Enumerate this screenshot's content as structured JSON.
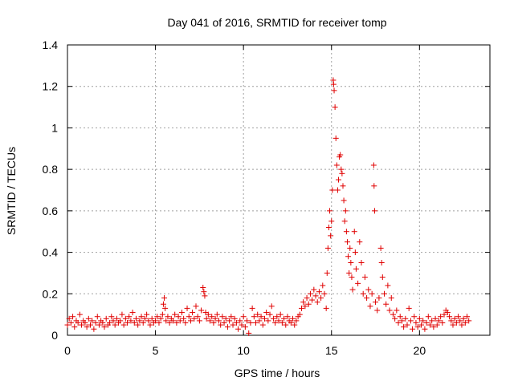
{
  "chart_data": {
    "type": "scatter",
    "title": "Day 041 of 2016, SRMTID for receiver tomp",
    "xlabel": "GPS time / hours",
    "ylabel": "SRMTID / TECUs",
    "xlim": [
      0,
      24
    ],
    "ylim": [
      0,
      1.4
    ],
    "xticks": [
      0,
      5,
      10,
      15,
      20
    ],
    "yticks": [
      0,
      0.2,
      0.4,
      0.6,
      0.8,
      1,
      1.2,
      1.4
    ],
    "xtick_labels": [
      "0",
      "5",
      "10",
      "15",
      "20"
    ],
    "ytick_labels": [
      "0",
      "0.2",
      "0.4",
      "0.6",
      "0.8",
      "1",
      "1.2",
      "1.4"
    ],
    "grid": true,
    "marker": "+",
    "color": "#e00000",
    "series": [
      {
        "name": "SRMTID",
        "points": [
          [
            0.0,
            0.05
          ],
          [
            0.1,
            0.08
          ],
          [
            0.2,
            0.06
          ],
          [
            0.3,
            0.09
          ],
          [
            0.4,
            0.04
          ],
          [
            0.5,
            0.07
          ],
          [
            0.6,
            0.06
          ],
          [
            0.7,
            0.1
          ],
          [
            0.8,
            0.05
          ],
          [
            0.9,
            0.07
          ],
          [
            1.0,
            0.06
          ],
          [
            1.1,
            0.04
          ],
          [
            1.2,
            0.08
          ],
          [
            1.3,
            0.05
          ],
          [
            1.4,
            0.07
          ],
          [
            1.5,
            0.03
          ],
          [
            1.6,
            0.06
          ],
          [
            1.7,
            0.09
          ],
          [
            1.8,
            0.05
          ],
          [
            1.9,
            0.07
          ],
          [
            2.0,
            0.06
          ],
          [
            2.1,
            0.04
          ],
          [
            2.2,
            0.08
          ],
          [
            2.3,
            0.05
          ],
          [
            2.4,
            0.06
          ],
          [
            2.5,
            0.09
          ],
          [
            2.6,
            0.07
          ],
          [
            2.7,
            0.05
          ],
          [
            2.8,
            0.08
          ],
          [
            2.9,
            0.06
          ],
          [
            3.0,
            0.07
          ],
          [
            3.1,
            0.1
          ],
          [
            3.2,
            0.05
          ],
          [
            3.3,
            0.08
          ],
          [
            3.4,
            0.06
          ],
          [
            3.5,
            0.09
          ],
          [
            3.6,
            0.07
          ],
          [
            3.7,
            0.11
          ],
          [
            3.8,
            0.06
          ],
          [
            3.9,
            0.08
          ],
          [
            4.0,
            0.05
          ],
          [
            4.1,
            0.07
          ],
          [
            4.2,
            0.09
          ],
          [
            4.3,
            0.06
          ],
          [
            4.4,
            0.08
          ],
          [
            4.5,
            0.1
          ],
          [
            4.6,
            0.07
          ],
          [
            4.7,
            0.05
          ],
          [
            4.8,
            0.08
          ],
          [
            4.9,
            0.06
          ],
          [
            5.0,
            0.07
          ],
          [
            5.1,
            0.09
          ],
          [
            5.2,
            0.06
          ],
          [
            5.3,
            0.08
          ],
          [
            5.4,
            0.1
          ],
          [
            5.45,
            0.15
          ],
          [
            5.5,
            0.18
          ],
          [
            5.55,
            0.13
          ],
          [
            5.6,
            0.07
          ],
          [
            5.7,
            0.09
          ],
          [
            5.8,
            0.06
          ],
          [
            5.9,
            0.08
          ],
          [
            6.0,
            0.07
          ],
          [
            6.1,
            0.1
          ],
          [
            6.2,
            0.06
          ],
          [
            6.3,
            0.09
          ],
          [
            6.4,
            0.07
          ],
          [
            6.5,
            0.11
          ],
          [
            6.6,
            0.08
          ],
          [
            6.7,
            0.06
          ],
          [
            6.8,
            0.13
          ],
          [
            6.9,
            0.09
          ],
          [
            7.0,
            0.07
          ],
          [
            7.1,
            0.11
          ],
          [
            7.2,
            0.08
          ],
          [
            7.3,
            0.14
          ],
          [
            7.4,
            0.09
          ],
          [
            7.5,
            0.07
          ],
          [
            7.6,
            0.12
          ],
          [
            7.7,
            0.23
          ],
          [
            7.75,
            0.21
          ],
          [
            7.8,
            0.19
          ],
          [
            7.85,
            0.11
          ],
          [
            7.9,
            0.08
          ],
          [
            8.0,
            0.1
          ],
          [
            8.1,
            0.07
          ],
          [
            8.2,
            0.09
          ],
          [
            8.3,
            0.06
          ],
          [
            8.4,
            0.08
          ],
          [
            8.5,
            0.1
          ],
          [
            8.6,
            0.07
          ],
          [
            8.7,
            0.05
          ],
          [
            8.8,
            0.09
          ],
          [
            8.9,
            0.06
          ],
          [
            9.0,
            0.08
          ],
          [
            9.1,
            0.04
          ],
          [
            9.2,
            0.07
          ],
          [
            9.3,
            0.09
          ],
          [
            9.4,
            0.05
          ],
          [
            9.5,
            0.08
          ],
          [
            9.6,
            0.06
          ],
          [
            9.7,
            0.03
          ],
          [
            9.8,
            0.07
          ],
          [
            9.9,
            0.05
          ],
          [
            10.0,
            0.09
          ],
          [
            10.1,
            0.04
          ],
          [
            10.2,
            0.07
          ],
          [
            10.3,
            0.01
          ],
          [
            10.4,
            0.06
          ],
          [
            10.5,
            0.13
          ],
          [
            10.6,
            0.09
          ],
          [
            10.7,
            0.06
          ],
          [
            10.8,
            0.1
          ],
          [
            10.9,
            0.07
          ],
          [
            11.0,
            0.09
          ],
          [
            11.1,
            0.05
          ],
          [
            11.2,
            0.08
          ],
          [
            11.3,
            0.11
          ],
          [
            11.4,
            0.07
          ],
          [
            11.5,
            0.1
          ],
          [
            11.6,
            0.14
          ],
          [
            11.7,
            0.08
          ],
          [
            11.8,
            0.06
          ],
          [
            11.9,
            0.09
          ],
          [
            12.0,
            0.07
          ],
          [
            12.1,
            0.1
          ],
          [
            12.2,
            0.06
          ],
          [
            12.3,
            0.08
          ],
          [
            12.4,
            0.05
          ],
          [
            12.5,
            0.09
          ],
          [
            12.6,
            0.07
          ],
          [
            12.7,
            0.06
          ],
          [
            12.8,
            0.08
          ],
          [
            12.9,
            0.05
          ],
          [
            13.0,
            0.07
          ],
          [
            13.1,
            0.09
          ],
          [
            13.2,
            0.1
          ],
          [
            13.3,
            0.13
          ],
          [
            13.4,
            0.16
          ],
          [
            13.5,
            0.14
          ],
          [
            13.6,
            0.18
          ],
          [
            13.7,
            0.15
          ],
          [
            13.8,
            0.2
          ],
          [
            13.9,
            0.17
          ],
          [
            14.0,
            0.22
          ],
          [
            14.1,
            0.19
          ],
          [
            14.2,
            0.16
          ],
          [
            14.3,
            0.21
          ],
          [
            14.4,
            0.18
          ],
          [
            14.5,
            0.24
          ],
          [
            14.6,
            0.2
          ],
          [
            14.7,
            0.13
          ],
          [
            14.75,
            0.3
          ],
          [
            14.8,
            0.42
          ],
          [
            14.85,
            0.52
          ],
          [
            14.9,
            0.6
          ],
          [
            14.95,
            0.48
          ],
          [
            15.0,
            0.55
          ],
          [
            15.05,
            0.7
          ],
          [
            15.1,
            1.23
          ],
          [
            15.12,
            1.21
          ],
          [
            15.15,
            1.18
          ],
          [
            15.2,
            1.1
          ],
          [
            15.25,
            0.95
          ],
          [
            15.3,
            0.82
          ],
          [
            15.35,
            0.7
          ],
          [
            15.4,
            0.75
          ],
          [
            15.45,
            0.86
          ],
          [
            15.5,
            0.87
          ],
          [
            15.55,
            0.8
          ],
          [
            15.6,
            0.78
          ],
          [
            15.65,
            0.72
          ],
          [
            15.7,
            0.65
          ],
          [
            15.75,
            0.55
          ],
          [
            15.8,
            0.6
          ],
          [
            15.85,
            0.5
          ],
          [
            15.9,
            0.45
          ],
          [
            15.95,
            0.38
          ],
          [
            16.0,
            0.3
          ],
          [
            16.05,
            0.42
          ],
          [
            16.1,
            0.35
          ],
          [
            16.15,
            0.28
          ],
          [
            16.2,
            0.22
          ],
          [
            16.3,
            0.5
          ],
          [
            16.35,
            0.4
          ],
          [
            16.4,
            0.32
          ],
          [
            16.5,
            0.25
          ],
          [
            16.6,
            0.45
          ],
          [
            16.7,
            0.35
          ],
          [
            16.8,
            0.2
          ],
          [
            16.9,
            0.28
          ],
          [
            17.0,
            0.18
          ],
          [
            17.1,
            0.22
          ],
          [
            17.2,
            0.14
          ],
          [
            17.3,
            0.2
          ],
          [
            17.4,
            0.82
          ],
          [
            17.42,
            0.72
          ],
          [
            17.45,
            0.6
          ],
          [
            17.5,
            0.16
          ],
          [
            17.6,
            0.12
          ],
          [
            17.7,
            0.18
          ],
          [
            17.8,
            0.42
          ],
          [
            17.85,
            0.35
          ],
          [
            17.9,
            0.28
          ],
          [
            18.0,
            0.2
          ],
          [
            18.1,
            0.15
          ],
          [
            18.2,
            0.24
          ],
          [
            18.3,
            0.12
          ],
          [
            18.4,
            0.18
          ],
          [
            18.5,
            0.1
          ],
          [
            18.6,
            0.08
          ],
          [
            18.7,
            0.12
          ],
          [
            18.8,
            0.06
          ],
          [
            18.9,
            0.09
          ],
          [
            19.0,
            0.07
          ],
          [
            19.1,
            0.04
          ],
          [
            19.2,
            0.08
          ],
          [
            19.3,
            0.05
          ],
          [
            19.4,
            0.13
          ],
          [
            19.5,
            0.07
          ],
          [
            19.6,
            0.03
          ],
          [
            19.7,
            0.09
          ],
          [
            19.8,
            0.06
          ],
          [
            19.9,
            0.04
          ],
          [
            20.0,
            0.08
          ],
          [
            20.1,
            0.05
          ],
          [
            20.2,
            0.07
          ],
          [
            20.3,
            0.03
          ],
          [
            20.4,
            0.06
          ],
          [
            20.5,
            0.09
          ],
          [
            20.6,
            0.05
          ],
          [
            20.7,
            0.07
          ],
          [
            20.8,
            0.04
          ],
          [
            20.9,
            0.08
          ],
          [
            21.0,
            0.05
          ],
          [
            21.1,
            0.07
          ],
          [
            21.2,
            0.09
          ],
          [
            21.3,
            0.06
          ],
          [
            21.4,
            0.1
          ],
          [
            21.5,
            0.12
          ],
          [
            21.6,
            0.11
          ],
          [
            21.7,
            0.09
          ],
          [
            21.8,
            0.07
          ],
          [
            21.9,
            0.05
          ],
          [
            22.0,
            0.08
          ],
          [
            22.1,
            0.06
          ],
          [
            22.2,
            0.09
          ],
          [
            22.3,
            0.07
          ],
          [
            22.4,
            0.05
          ],
          [
            22.5,
            0.08
          ],
          [
            22.6,
            0.06
          ],
          [
            22.7,
            0.09
          ],
          [
            22.8,
            0.07
          ]
        ]
      }
    ]
  }
}
